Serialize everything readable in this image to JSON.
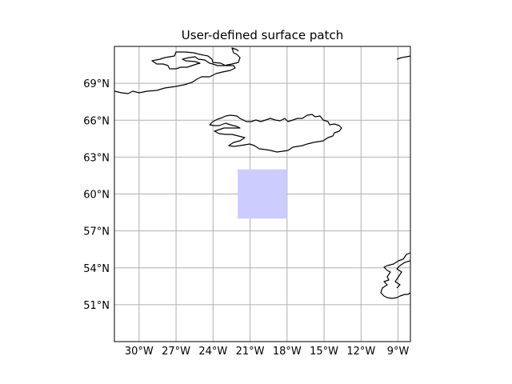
{
  "map": {
    "title": "User-defined surface patch",
    "lon_range": [
      -32,
      -8
    ],
    "lat_range": [
      48,
      72
    ],
    "lon_ticks": [
      {
        "value": -30,
        "label": "30°W"
      },
      {
        "value": -27,
        "label": "27°W"
      },
      {
        "value": -24,
        "label": "24°W"
      },
      {
        "value": -21,
        "label": "21°W"
      },
      {
        "value": -18,
        "label": "18°W"
      },
      {
        "value": -15,
        "label": "15°W"
      },
      {
        "value": -12,
        "label": "12°W"
      },
      {
        "value": -9,
        "label": "9°W"
      }
    ],
    "lat_ticks": [
      {
        "value": 69,
        "label": "69°N"
      },
      {
        "value": 66,
        "label": "66°N"
      },
      {
        "value": 63,
        "label": "63°N"
      },
      {
        "value": 60,
        "label": "60°N"
      },
      {
        "value": 57,
        "label": "57°N"
      },
      {
        "value": 54,
        "label": "54°N"
      },
      {
        "value": 51,
        "label": "51°N"
      }
    ],
    "patch": {
      "lon_min": -22,
      "lon_max": -18,
      "lat_min": 58,
      "lat_max": 62,
      "color": "#ccccff"
    },
    "grid": true,
    "coastlines": [
      "Greenland",
      "Iceland",
      "Faroe/Norway",
      "Scotland/Ireland"
    ]
  }
}
